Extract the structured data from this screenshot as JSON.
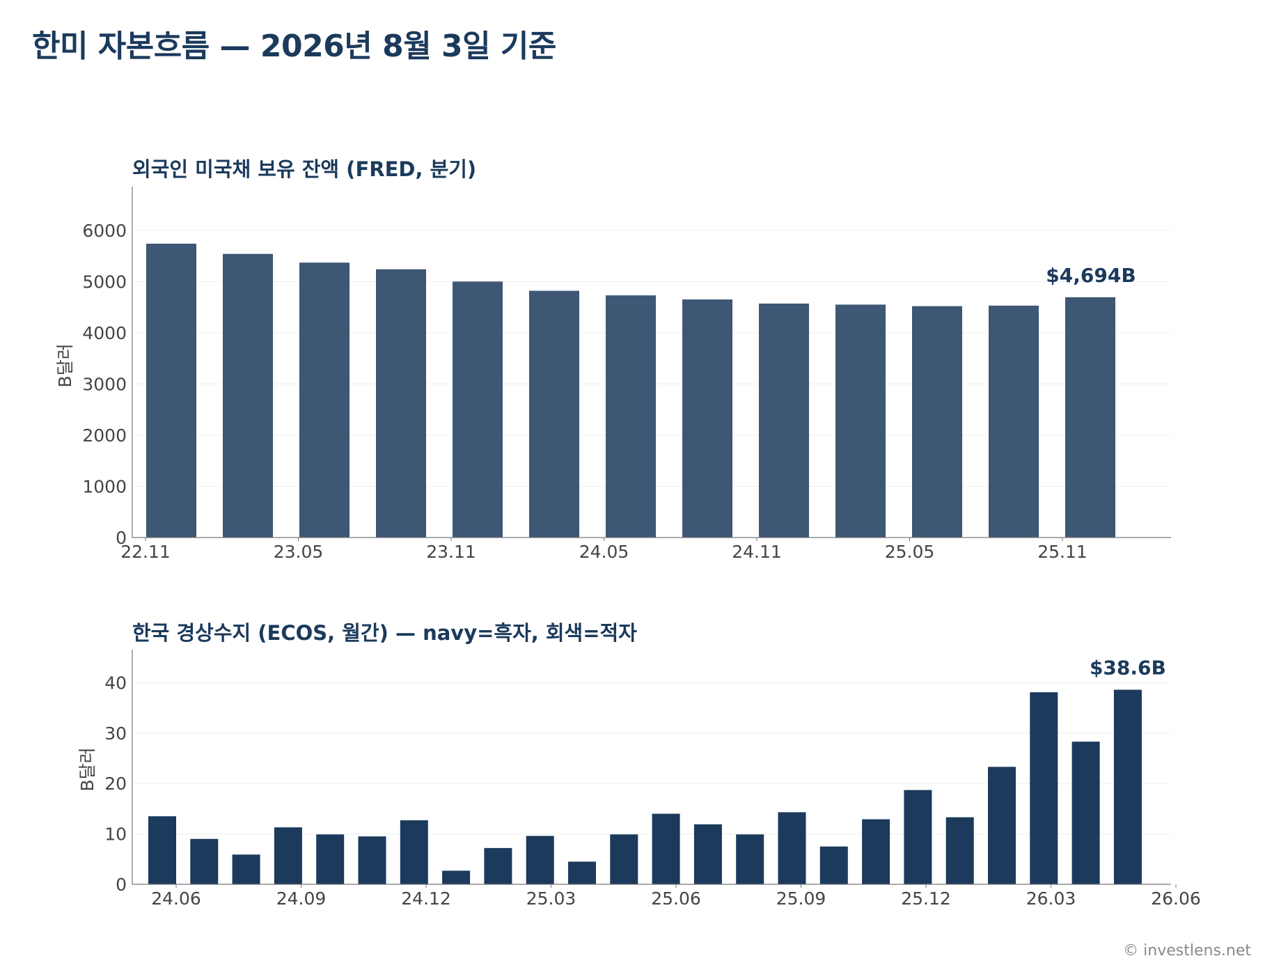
{
  "page_title": "한미 자본흐름 — 2026년 8월 3일 기준",
  "credit": "© investlens.net",
  "colors": {
    "navy": "#1b3a5c",
    "bar_top": "#3d5775",
    "deficit_gray": "#a0a0a0"
  },
  "chart_data": [
    {
      "type": "bar",
      "title": "외국인 미국채 보유 잔액 (FRED, 분기)",
      "ylabel": "B달러",
      "ylim": [
        0,
        6800
      ],
      "yticks": [
        0,
        1000,
        2000,
        3000,
        4000,
        5000,
        6000
      ],
      "x_tick_labels": [
        "22.11",
        "23.05",
        "23.11",
        "24.05",
        "24.11",
        "25.05",
        "25.11"
      ],
      "values": [
        5740,
        5540,
        5370,
        5240,
        5000,
        4820,
        4730,
        4650,
        4570,
        4550,
        4520,
        4530,
        4694
      ],
      "annotation": "$4,694B"
    },
    {
      "type": "bar",
      "title": "한국 경상수지 (ECOS, 월간) — navy=흑자, 회색=적자",
      "ylabel": "B달러",
      "ylim": [
        0,
        46
      ],
      "yticks": [
        0,
        10,
        20,
        30,
        40
      ],
      "x_tick_labels": [
        "24.06",
        "24.09",
        "24.12",
        "25.03",
        "25.06",
        "25.09",
        "25.12",
        "26.03",
        "26.06"
      ],
      "values": [
        13.5,
        9.0,
        5.9,
        11.3,
        9.9,
        9.5,
        12.7,
        2.7,
        7.2,
        9.6,
        4.5,
        9.9,
        14.0,
        11.9,
        9.9,
        14.3,
        7.5,
        12.9,
        18.7,
        13.3,
        23.3,
        38.1,
        28.3,
        38.6
      ],
      "annotation": "$38.6B"
    }
  ]
}
